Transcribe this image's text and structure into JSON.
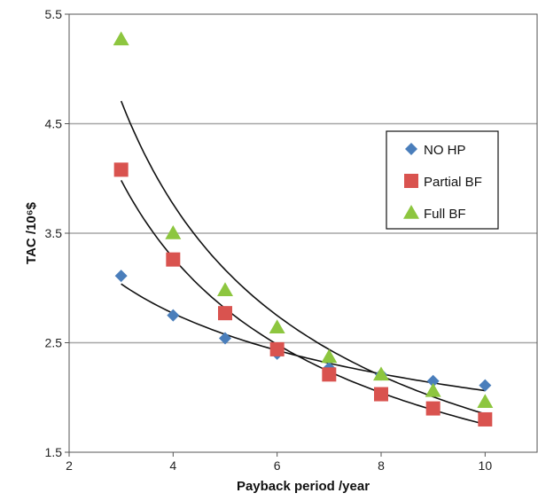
{
  "chart_data": {
    "type": "scatter",
    "xlabel": "Payback period /year",
    "ylabel": "TAC /10⁶$",
    "xlim": [
      2,
      11
    ],
    "ylim": [
      1.5,
      5.5
    ],
    "x_ticks": [
      "2",
      "4",
      "6",
      "8",
      "10"
    ],
    "y_ticks": [
      "1.5",
      "2.5",
      "3.5",
      "4.5",
      "5.5"
    ],
    "grid": "horizontal",
    "legend_position": "right",
    "trendlines": true,
    "series": [
      {
        "name": "NO HP",
        "marker": "diamond",
        "color": "#4a7ebb",
        "x": [
          3,
          4,
          5,
          6,
          7,
          8,
          9,
          10
        ],
        "y": [
          3.11,
          2.75,
          2.54,
          2.4,
          2.27,
          2.21,
          2.15,
          2.11
        ]
      },
      {
        "name": "Partial BF",
        "marker": "square",
        "color": "#d9534f",
        "x": [
          3,
          4,
          5,
          6,
          7,
          8,
          9,
          10
        ],
        "y": [
          4.08,
          3.26,
          2.77,
          2.44,
          2.21,
          2.03,
          1.9,
          1.8
        ]
      },
      {
        "name": "Full BF",
        "marker": "triangle",
        "color": "#8dc63f",
        "x": [
          3,
          4,
          5,
          6,
          7,
          8,
          9,
          10
        ],
        "y": [
          5.27,
          3.5,
          2.98,
          2.64,
          2.37,
          2.21,
          2.06,
          1.96
        ]
      }
    ]
  }
}
